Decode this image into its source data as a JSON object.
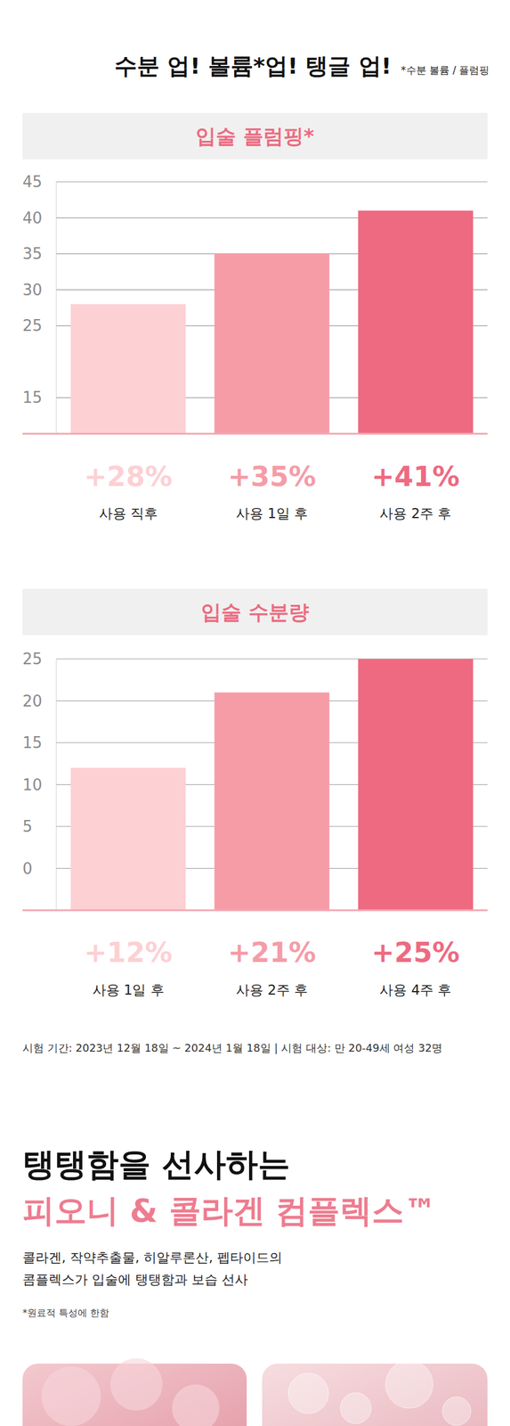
{
  "header": {
    "title": "수분 업! 볼륨*업! 탱글 업!",
    "footnote": "*수분 볼륨 / 플럼핑"
  },
  "chart_data": [
    {
      "type": "bar",
      "title": "입술 플럼핑*",
      "categories": [
        "사용 직후",
        "사용 1일 후",
        "사용 2주 후"
      ],
      "values": [
        28,
        35,
        41
      ],
      "value_labels": [
        "+28%",
        "+35%",
        "+41%"
      ],
      "colors": [
        "#fdd0d4",
        "#f59ca7",
        "#ee6a81"
      ],
      "ylim": [
        10,
        45
      ],
      "yticks": [
        15,
        25,
        30,
        35,
        40,
        45
      ],
      "grid": true,
      "data_labels": true
    },
    {
      "type": "bar",
      "title": "입술 수분량",
      "categories": [
        "사용 1일 후",
        "사용 2주 후",
        "사용 4주 후"
      ],
      "values": [
        12,
        21,
        25
      ],
      "value_labels": [
        "+12%",
        "+21%",
        "+25%"
      ],
      "colors": [
        "#fdd0d4",
        "#f59ca7",
        "#ee6a81"
      ],
      "ylim": [
        -5,
        25
      ],
      "yticks": [
        0,
        5,
        10,
        15,
        20,
        25
      ],
      "grid": true,
      "data_labels": true
    }
  ],
  "test_note": "시험 기간: 2023년 12월 18일 ~ 2024년 1월 18일 | 시험 대상: 만 20-49세 여성 32명",
  "section": {
    "heading": "탱탱함을 선사하는",
    "subheading": "피오니 & 콜라겐 컴플렉스™",
    "body": [
      "콜라겐, 작약추출물, 히알루론산, 펩타이드의",
      "콤플렉스가 입술에 탱탱함과 보습 선사"
    ],
    "footnote": "*원료적 특성에 한함"
  }
}
